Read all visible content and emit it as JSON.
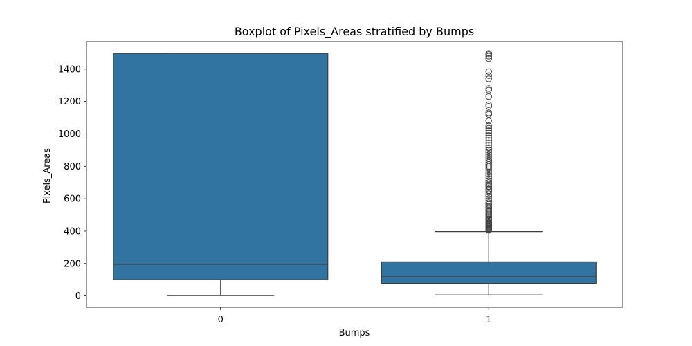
{
  "chart_data": {
    "type": "boxplot",
    "title": "Boxplot of Pixels_Areas stratified by Bumps",
    "xlabel": "Bumps",
    "ylabel": "Pixels_Areas",
    "categories": [
      "0",
      "1"
    ],
    "ylim": [
      -70,
      1570
    ],
    "yticks": [
      0,
      200,
      400,
      600,
      800,
      1000,
      1200,
      1400
    ],
    "grid": false,
    "legend": "none",
    "box_color": "#3274a1",
    "edge_color": "#3d3d3d",
    "boxes": [
      {
        "category": "0",
        "whisker_low": 2,
        "q1": 100,
        "median": 195,
        "q3": 1497,
        "whisker_high": 1499,
        "outliers": []
      },
      {
        "category": "1",
        "whisker_low": 6,
        "q1": 77,
        "median": 118,
        "q3": 210,
        "whisker_high": 397,
        "outliers": [
          405,
          410,
          415,
          420,
          425,
          430,
          435,
          440,
          445,
          452,
          460,
          468,
          475,
          482,
          490,
          498,
          506,
          515,
          523,
          532,
          540,
          548,
          556,
          565,
          575,
          585,
          600,
          615,
          625,
          640,
          650,
          660,
          668,
          676,
          684,
          690,
          700,
          712,
          725,
          740,
          752,
          765,
          778,
          790,
          800,
          812,
          825,
          838,
          850,
          862,
          875,
          888,
          900,
          915,
          930,
          945,
          960,
          975,
          990,
          1005,
          1020,
          1035,
          1050,
          1080,
          1120,
          1130,
          1170,
          1180,
          1230,
          1270,
          1280,
          1340,
          1360,
          1385,
          1465,
          1480,
          1490,
          1497
        ]
      }
    ]
  }
}
